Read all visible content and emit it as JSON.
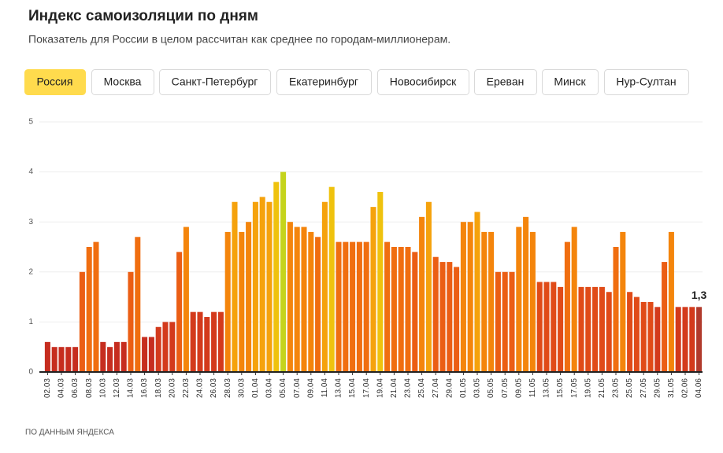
{
  "chart_data": {
    "type": "bar",
    "title": "Индекс самоизоляции по дням",
    "subtitle": "Показатель для России в целом рассчитан как среднее по городам-миллионерам.",
    "tabs": [
      "Россия",
      "Москва",
      "Санкт-Петербург",
      "Екатеринбург",
      "Новосибирск",
      "Ереван",
      "Минск",
      "Нур-Султан"
    ],
    "active_tab": 0,
    "source": "ПО ДАННЫМ ЯНДЕКСА",
    "categories": [
      "02.03",
      null,
      "04.03",
      null,
      "06.03",
      null,
      "08.03",
      null,
      "10.03",
      null,
      "12.03",
      null,
      "14.03",
      null,
      "16.03",
      null,
      "18.03",
      null,
      "20.03",
      null,
      "22.03",
      null,
      "24.03",
      null,
      "26.03",
      null,
      "28.03",
      null,
      "30.03",
      null,
      "01.04",
      null,
      "03.04",
      null,
      "05.04",
      null,
      "07.04",
      null,
      "09.04",
      null,
      "11.04",
      null,
      "13.04",
      null,
      "15.04",
      null,
      "17.04",
      null,
      "19.04",
      null,
      "21.04",
      null,
      "23.04",
      null,
      "25.04",
      null,
      "27.04",
      null,
      "29.04",
      null,
      "01.05",
      null,
      "03.05",
      null,
      "05.05",
      null,
      "07.05",
      null,
      "09.05",
      null,
      "11.05",
      null,
      "13.05",
      null,
      "15.05",
      null,
      "17.05",
      null,
      "19.05",
      null,
      "21.05",
      null,
      "23.05",
      null,
      "25.05",
      null,
      "27.05",
      null,
      "29.05",
      null,
      "31.05",
      null,
      "02.06",
      null,
      "04.06"
    ],
    "values": [
      0.6,
      0.5,
      0.5,
      0.5,
      0.5,
      2.0,
      2.5,
      2.6,
      0.6,
      0.5,
      0.6,
      0.6,
      2.0,
      2.7,
      0.7,
      0.7,
      0.9,
      1.0,
      1.0,
      2.4,
      2.9,
      1.2,
      1.2,
      1.1,
      1.2,
      1.2,
      2.8,
      3.4,
      2.8,
      3.0,
      3.4,
      3.5,
      3.4,
      3.8,
      4.0,
      3.0,
      2.9,
      2.9,
      2.8,
      2.7,
      3.4,
      3.7,
      2.6,
      2.6,
      2.6,
      2.6,
      2.6,
      3.3,
      3.6,
      2.6,
      2.5,
      2.5,
      2.5,
      2.4,
      3.1,
      3.4,
      2.3,
      2.2,
      2.2,
      2.1,
      3.0,
      3.0,
      3.2,
      2.8,
      2.8,
      2.0,
      2.0,
      2.0,
      2.9,
      3.1,
      2.8,
      1.8,
      1.8,
      1.8,
      1.7,
      2.6,
      2.9,
      1.7,
      1.7,
      1.7,
      1.7,
      1.6,
      2.5,
      2.8,
      1.6,
      1.5,
      1.4,
      1.4,
      1.3,
      2.2,
      2.8,
      1.3,
      1.3,
      1.3,
      1.3
    ],
    "colors": [
      "#c62d1f",
      "#c62d1f",
      "#c62d1f",
      "#c62d1f",
      "#c62d1f",
      "#eb5e14",
      "#f06e10",
      "#f06e10",
      "#c62d1f",
      "#c62d1f",
      "#c62d1f",
      "#c62d1f",
      "#eb5e14",
      "#f06e10",
      "#c62d1f",
      "#c62d1f",
      "#d33a1c",
      "#d33a1c",
      "#d33a1c",
      "#eb5e14",
      "#f4850c",
      "#d33a1c",
      "#d33a1c",
      "#d33a1c",
      "#d33a1c",
      "#d33a1c",
      "#f4850c",
      "#f5a20c",
      "#f4850c",
      "#f4850c",
      "#f5a20c",
      "#f5a20c",
      "#f5a20c",
      "#efc20e",
      "#c5d41c",
      "#f4850c",
      "#f4850c",
      "#f4850c",
      "#f4850c",
      "#f06e10",
      "#f5a20c",
      "#efc20e",
      "#f06e10",
      "#f06e10",
      "#f06e10",
      "#f06e10",
      "#f06e10",
      "#f5a20c",
      "#efc20e",
      "#f06e10",
      "#f06e10",
      "#f06e10",
      "#f06e10",
      "#eb5e14",
      "#f4850c",
      "#f5a20c",
      "#eb5e14",
      "#eb5e14",
      "#eb5e14",
      "#eb5e14",
      "#f4850c",
      "#f4850c",
      "#f5a20c",
      "#f4850c",
      "#f4850c",
      "#eb5e14",
      "#eb5e14",
      "#eb5e14",
      "#f4850c",
      "#f4850c",
      "#f4850c",
      "#e04b18",
      "#e04b18",
      "#e04b18",
      "#e04b18",
      "#f06e10",
      "#f4850c",
      "#e04b18",
      "#e04b18",
      "#e04b18",
      "#e04b18",
      "#e04b18",
      "#f06e10",
      "#f4850c",
      "#e04b18",
      "#e04b18",
      "#e04b18",
      "#e04b18",
      "#d33a1c",
      "#eb5e14",
      "#f4850c",
      "#d33a1c",
      "#d33a1c",
      "#d33a1c",
      "#b13a2c"
    ],
    "value_labels": [
      null,
      null,
      null,
      null,
      null,
      null,
      null,
      null,
      null,
      null,
      null,
      null,
      null,
      null,
      null,
      null,
      null,
      null,
      null,
      null,
      null,
      null,
      null,
      null,
      null,
      null,
      null,
      null,
      null,
      null,
      null,
      null,
      null,
      null,
      null,
      null,
      null,
      null,
      null,
      null,
      null,
      null,
      null,
      null,
      null,
      null,
      null,
      null,
      null,
      null,
      null,
      null,
      null,
      null,
      null,
      null,
      null,
      null,
      null,
      null,
      null,
      null,
      null,
      null,
      null,
      null,
      null,
      null,
      null,
      null,
      null,
      null,
      null,
      null,
      null,
      null,
      null,
      null,
      null,
      null,
      null,
      null,
      null,
      null,
      null,
      null,
      null,
      null,
      null,
      null,
      null,
      null,
      null,
      null,
      "1,3"
    ],
    "ylim": [
      0,
      5
    ],
    "yticks": [
      0,
      1,
      2,
      3,
      4,
      5
    ],
    "grid": true
  }
}
